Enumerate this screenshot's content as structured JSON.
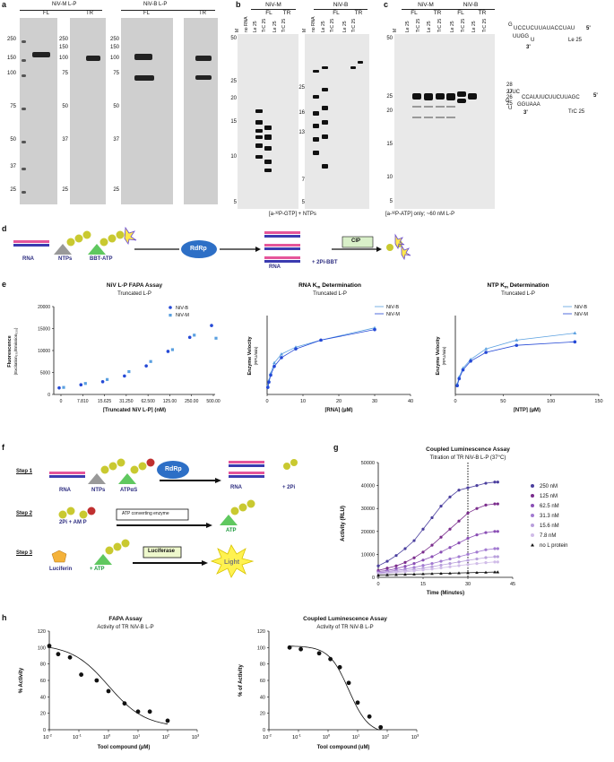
{
  "panels": {
    "a": "a",
    "b": "b",
    "c": "c",
    "d": "d",
    "e": "e",
    "f": "f",
    "g": "g",
    "h": "h"
  },
  "a": {
    "niv_m_title": "NiV-M L-P",
    "niv_b_title": "NiV-B L-P",
    "fl": "FL",
    "tr": "TR",
    "markers_left": [
      "250",
      "150",
      "100",
      "75",
      "50",
      "37",
      "25"
    ],
    "markers_mid": [
      "250",
      "150",
      "100",
      "75",
      "50",
      "37",
      "25"
    ],
    "markers_right": [
      "250",
      "150",
      "100",
      "75",
      "50",
      "37",
      "25"
    ]
  },
  "b": {
    "niv_m": "NiV-M",
    "niv_b": "NiV-B",
    "fl": "FL",
    "tr": "TR",
    "lanes_m": [
      "M",
      "no RNA",
      "Le 25",
      "TrC 25",
      "Le 25",
      "TrC 25"
    ],
    "lanes_b": [
      "M",
      "no RNA",
      "Le 25",
      "TrC 25",
      "Le 25",
      "TrC 25"
    ],
    "markers_left": [
      "50",
      "25",
      "20",
      "15",
      "10",
      "5"
    ],
    "markers_right": [
      "25",
      "16",
      "13",
      "7",
      "5"
    ],
    "caption": "[a-³²P-GTP] + NTPs"
  },
  "c": {
    "niv_m": "NiV-M",
    "niv_b": "NiV-B",
    "fl": "FL",
    "tr": "TR",
    "lanes": [
      "M",
      "Le 25",
      "TrC 25",
      "Le 25",
      "TrC 25",
      "Le 25",
      "TrC 25",
      "Le 25",
      "TrC 25"
    ],
    "markers": [
      "50",
      "25",
      "20",
      "15",
      "10",
      "5"
    ],
    "sizes": [
      "28",
      "27",
      "26",
      "25"
    ],
    "caption": "[a-³²P-ATP] only; ~60 nM L-P",
    "le25_top": "G",
    "le25_seq1": "UCCUCUUAUACCUAU",
    "le25_5p": "5'",
    "le25_seq2": "UUGG",
    "le25_seq3": "U",
    "le25_3p": "3'",
    "le25_name": "Le 25",
    "trc_top": "UUC",
    "trc_seq1": "CCAUUUCUUCUUAGC",
    "trc_5p": "5'",
    "trc_g": "G",
    "trc_seq2": "GGUAAA",
    "trc_3p": "3'",
    "trc_u": "U",
    "trc_name": "TrC 25"
  },
  "d": {
    "rna": "RNA",
    "ntps": "NTPs",
    "bbt": "BBT-ATP",
    "rdrp": "RdRp",
    "rna2": "RNA",
    "pi": "+ 2Pi-BBT",
    "cip": "CIP"
  },
  "e": {
    "fapa_title": "NiV L-P FAPA Assay",
    "fapa_sub": "Truncated L-P",
    "fapa_ylabel": "Fluorescence",
    "fapa_ylabel2": "(Excitation₃₇₀/Emission₅₃₀)",
    "fapa_xlabel": "[Truncated NiV L-P] (nM)",
    "rna_title": "RNA K",
    "rna_title_sub": "m",
    "rna_title_end": " Determination",
    "rna_sub": "Truncated L-P",
    "rna_xlabel": "[RNA] (µM)",
    "ntp_title": "NTP K",
    "ntp_title_sub": "m",
    "ntp_title_end": " Determination",
    "ntp_sub": "Truncated L-P",
    "ntp_xlabel": "[NTP] (µM)",
    "vel_label": "Enzyme Velocity",
    "vel_unit": "(RFU/min)",
    "legend_b": "NiV-B",
    "legend_m": "NiV-M"
  },
  "f": {
    "step1": "Step 1",
    "step2": "Step 2",
    "step3": "Step 3",
    "rna": "RNA",
    "ntps": "NTPs",
    "atpas": "ATPαS",
    "rdrp": "RdRp",
    "rna2": "RNA",
    "pi": "+ 2Pi",
    "pi_amp": "2Pi + AM P",
    "atp_enz": "ATP converting enzyme",
    "atp": "ATP",
    "luciferin": "Luciferin",
    "plus_atp": "+ ATP",
    "luciferase": "Luciferase",
    "light": "Light"
  },
  "g": {
    "title": "Coupled Luminescence Assay",
    "subtitle": "Titration of TR NiV-B L-P (37°C)",
    "ylabel": "Activity (RLU)",
    "xlabel": "Time (Minutes)",
    "legend": [
      "250 nM",
      "125 nM",
      "62.5 nM",
      "31.3 nM",
      "15.6 nM",
      "7.8 nM",
      "no L protein"
    ]
  },
  "h": {
    "fapa_title": "FAPA Assay",
    "fapa_sub": "Activity of TR NiV-B L-P",
    "fapa_ylabel": "% Activity",
    "lum_title": "Coupled Luminescence Assay",
    "lum_sub": "Activity of TR NiV-B L-P",
    "lum_ylabel": "% of Activity",
    "xlabel_fapa": "Tool compound (µM)",
    "xlabel_lum": "Tool compound (uM)"
  },
  "chart_data": [
    {
      "type": "scatter",
      "title": "NiV L-P FAPA Assay",
      "subtitle": "Truncated L-P",
      "xlabel": "[Truncated NiV L-P] (nM)",
      "ylabel": "Fluorescence (Excitation370/Emission530)",
      "categories": [
        "0",
        "7.810",
        "15.625",
        "31.250",
        "62.500",
        "125.00",
        "250.00",
        "500.00"
      ],
      "ylim": [
        0,
        20000
      ],
      "yticks": [
        0,
        5000,
        10000,
        15000,
        20000
      ],
      "series": [
        {
          "name": "NiV-B",
          "color": "#2549d6",
          "values": [
            1500,
            2200,
            2900,
            4200,
            6500,
            9800,
            13000,
            15700
          ]
        },
        {
          "name": "NiV-M",
          "color": "#5aa0e0",
          "values": [
            1600,
            2500,
            3400,
            5200,
            7500,
            10200,
            13500,
            12800
          ]
        }
      ]
    },
    {
      "type": "line",
      "title": "RNA Km Determination",
      "subtitle": "Truncated L-P",
      "xlabel": "[RNA] (µM)",
      "ylabel": "Enzyme Velocity (RFU/min)",
      "xlim": [
        0,
        40
      ],
      "xticks": [
        0,
        10,
        20,
        30,
        40
      ],
      "series": [
        {
          "name": "NiV-B",
          "x": [
            0.2,
            0.5,
            1,
            2,
            4,
            8,
            15,
            30
          ],
          "values": [
            5,
            8,
            12,
            18,
            23,
            27,
            31,
            38
          ]
        },
        {
          "name": "NiV-M",
          "x": [
            0.2,
            0.5,
            1,
            2,
            4,
            8,
            15,
            30
          ],
          "values": [
            4,
            7,
            11,
            16,
            21,
            26,
            31,
            37
          ]
        }
      ]
    },
    {
      "type": "line",
      "title": "NTP Km Determination",
      "subtitle": "Truncated L-P",
      "xlabel": "[NTP] (µM)",
      "ylabel": "Enzyme Velocity (RFU/min)",
      "xlim": [
        0,
        150
      ],
      "xticks": [
        0,
        50,
        100,
        150
      ],
      "series": [
        {
          "name": "NiV-B",
          "x": [
            2,
            4,
            8,
            16,
            32,
            64,
            125
          ],
          "values": [
            6,
            10,
            15,
            20,
            26,
            31,
            35
          ]
        },
        {
          "name": "NiV-M",
          "x": [
            2,
            4,
            8,
            16,
            32,
            64,
            125
          ],
          "values": [
            5,
            9,
            14,
            19,
            24,
            28,
            30
          ]
        }
      ]
    },
    {
      "type": "line",
      "title": "Coupled Luminescence Assay",
      "subtitle": "Titration of TR NiV-B L-P (37°C)",
      "xlabel": "Time (Minutes)",
      "ylabel": "Activity (RLU)",
      "xlim": [
        0,
        45
      ],
      "xticks": [
        0,
        15,
        30,
        45
      ],
      "ylim": [
        0,
        50000
      ],
      "yticks": [
        0,
        10000,
        20000,
        30000,
        40000,
        50000
      ],
      "x": [
        0,
        3,
        6,
        9,
        12,
        15,
        18,
        21,
        24,
        27,
        30,
        33,
        36,
        39,
        40
      ],
      "series": [
        {
          "name": "250 nM",
          "color": "#4b3f9e",
          "values": [
            5000,
            7000,
            9500,
            12500,
            16000,
            21000,
            26000,
            31000,
            35000,
            38000,
            39000,
            40000,
            41000,
            41500,
            41500
          ]
        },
        {
          "name": "125 nM",
          "color": "#7a2c8c",
          "values": [
            3000,
            4000,
            5000,
            6500,
            8500,
            11000,
            14000,
            17500,
            21000,
            24500,
            28000,
            30000,
            31500,
            32000,
            32000
          ]
        },
        {
          "name": "62.5 nM",
          "color": "#8a4fb5",
          "values": [
            2500,
            3000,
            3800,
            4800,
            6000,
            7500,
            9000,
            11000,
            13000,
            15000,
            17000,
            18500,
            19500,
            20000,
            20000
          ]
        },
        {
          "name": "31.3 nM",
          "color": "#a27ad1",
          "values": [
            2000,
            2500,
            3000,
            3600,
            4300,
            5200,
            6000,
            7000,
            8000,
            9000,
            10000,
            11000,
            12000,
            12500,
            12500
          ]
        },
        {
          "name": "15.6 nM",
          "color": "#b9a0dc",
          "values": [
            1800,
            2100,
            2500,
            2900,
            3400,
            4000,
            4600,
            5300,
            6000,
            6700,
            7400,
            8000,
            8600,
            9000,
            9000
          ]
        },
        {
          "name": "7.8 nM",
          "color": "#d0bce8",
          "values": [
            1500,
            1800,
            2100,
            2400,
            2800,
            3200,
            3600,
            4100,
            4600,
            5100,
            5600,
            6000,
            6400,
            6700,
            6700
          ]
        },
        {
          "name": "no L protein",
          "color": "#111111",
          "values": [
            1000,
            1100,
            1200,
            1300,
            1400,
            1500,
            1600,
            1700,
            1800,
            1900,
            2000,
            2100,
            2200,
            2300,
            2300
          ]
        }
      ]
    },
    {
      "type": "scatter",
      "title": "FAPA Assay",
      "subtitle": "Activity of TR NiV-B L-P",
      "xlabel": "Tool compound (µM)",
      "ylabel": "% Activity",
      "xscale": "log",
      "ylim": [
        0,
        120
      ],
      "yticks": [
        0,
        20,
        40,
        60,
        80,
        100,
        120
      ],
      "x": [
        0.01,
        0.02,
        0.05,
        0.12,
        0.4,
        1,
        3.5,
        10,
        25,
        100
      ],
      "values": [
        102,
        92,
        88,
        67,
        60,
        47,
        32,
        22,
        22,
        11
      ]
    },
    {
      "type": "scatter",
      "title": "Coupled Luminescence Assay",
      "subtitle": "Activity of TR NiV-B L-P",
      "xlabel": "Tool compound (uM)",
      "ylabel": "% of Activity",
      "xscale": "log",
      "ylim": [
        0,
        120
      ],
      "yticks": [
        0,
        20,
        40,
        60,
        80,
        100,
        120
      ],
      "x": [
        0.05,
        0.12,
        0.5,
        1.2,
        2.5,
        5,
        10,
        25,
        60
      ],
      "values": [
        100,
        98,
        93,
        86,
        76,
        57,
        33,
        16,
        3
      ]
    }
  ]
}
